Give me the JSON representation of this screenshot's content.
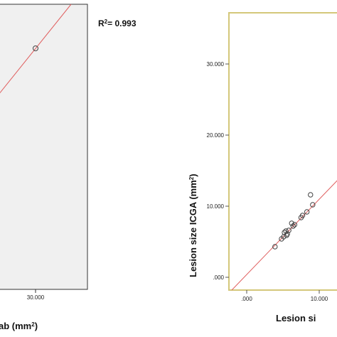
{
  "chart_data": [
    {
      "type": "scatter",
      "annotation": {
        "text_main": "R",
        "text_sup": "2",
        "text_rest": "= 0.993"
      },
      "xlabel": {
        "main": "ab (mm",
        "sup": "2",
        "end": ")"
      },
      "x_ticks": [
        {
          "value": 30000,
          "label": "30.000"
        }
      ],
      "xlim": [
        0,
        45000
      ],
      "ylim": [
        0,
        45000
      ],
      "points": [
        {
          "x": 30000,
          "y": 30200
        }
      ],
      "fit_line": {
        "slope": 1.0,
        "intercept": 0
      }
    },
    {
      "type": "scatter",
      "xlabel": {
        "main": "Lesion si"
      },
      "ylabel": {
        "main": "Lesion size ICGA (mm",
        "sup": "2",
        "end": ")"
      },
      "x_ticks": [
        {
          "value": 0,
          "label": ".000"
        },
        {
          "value": 10000,
          "label": "10.000"
        }
      ],
      "y_ticks": [
        {
          "value": 0,
          "label": ".000"
        },
        {
          "value": 10000,
          "label": "10.000"
        },
        {
          "value": 20000,
          "label": "20.000"
        },
        {
          "value": 30000,
          "label": "30.000"
        }
      ],
      "xlim": [
        -2000,
        12000
      ],
      "ylim": [
        -1600,
        35000
      ],
      "points": [
        {
          "x": 3900,
          "y": 4300
        },
        {
          "x": 4800,
          "y": 5400
        },
        {
          "x": 5100,
          "y": 5700
        },
        {
          "x": 5200,
          "y": 6300
        },
        {
          "x": 5400,
          "y": 6500
        },
        {
          "x": 5500,
          "y": 5900
        },
        {
          "x": 5600,
          "y": 6100
        },
        {
          "x": 5800,
          "y": 6600
        },
        {
          "x": 6200,
          "y": 7600
        },
        {
          "x": 6400,
          "y": 7200
        },
        {
          "x": 6600,
          "y": 7400
        },
        {
          "x": 7500,
          "y": 8400
        },
        {
          "x": 7700,
          "y": 8700
        },
        {
          "x": 8300,
          "y": 9200
        },
        {
          "x": 9100,
          "y": 10200
        },
        {
          "x": 8800,
          "y": 11600
        }
      ],
      "fit_line": {
        "slope": 1.05,
        "intercept": 0
      }
    }
  ],
  "colors": {
    "frame_left": "#333333",
    "plot_bg_left": "#f0f0f0",
    "frame_right": "#d4c77a",
    "line": "#e06060",
    "marker": "#444444"
  }
}
